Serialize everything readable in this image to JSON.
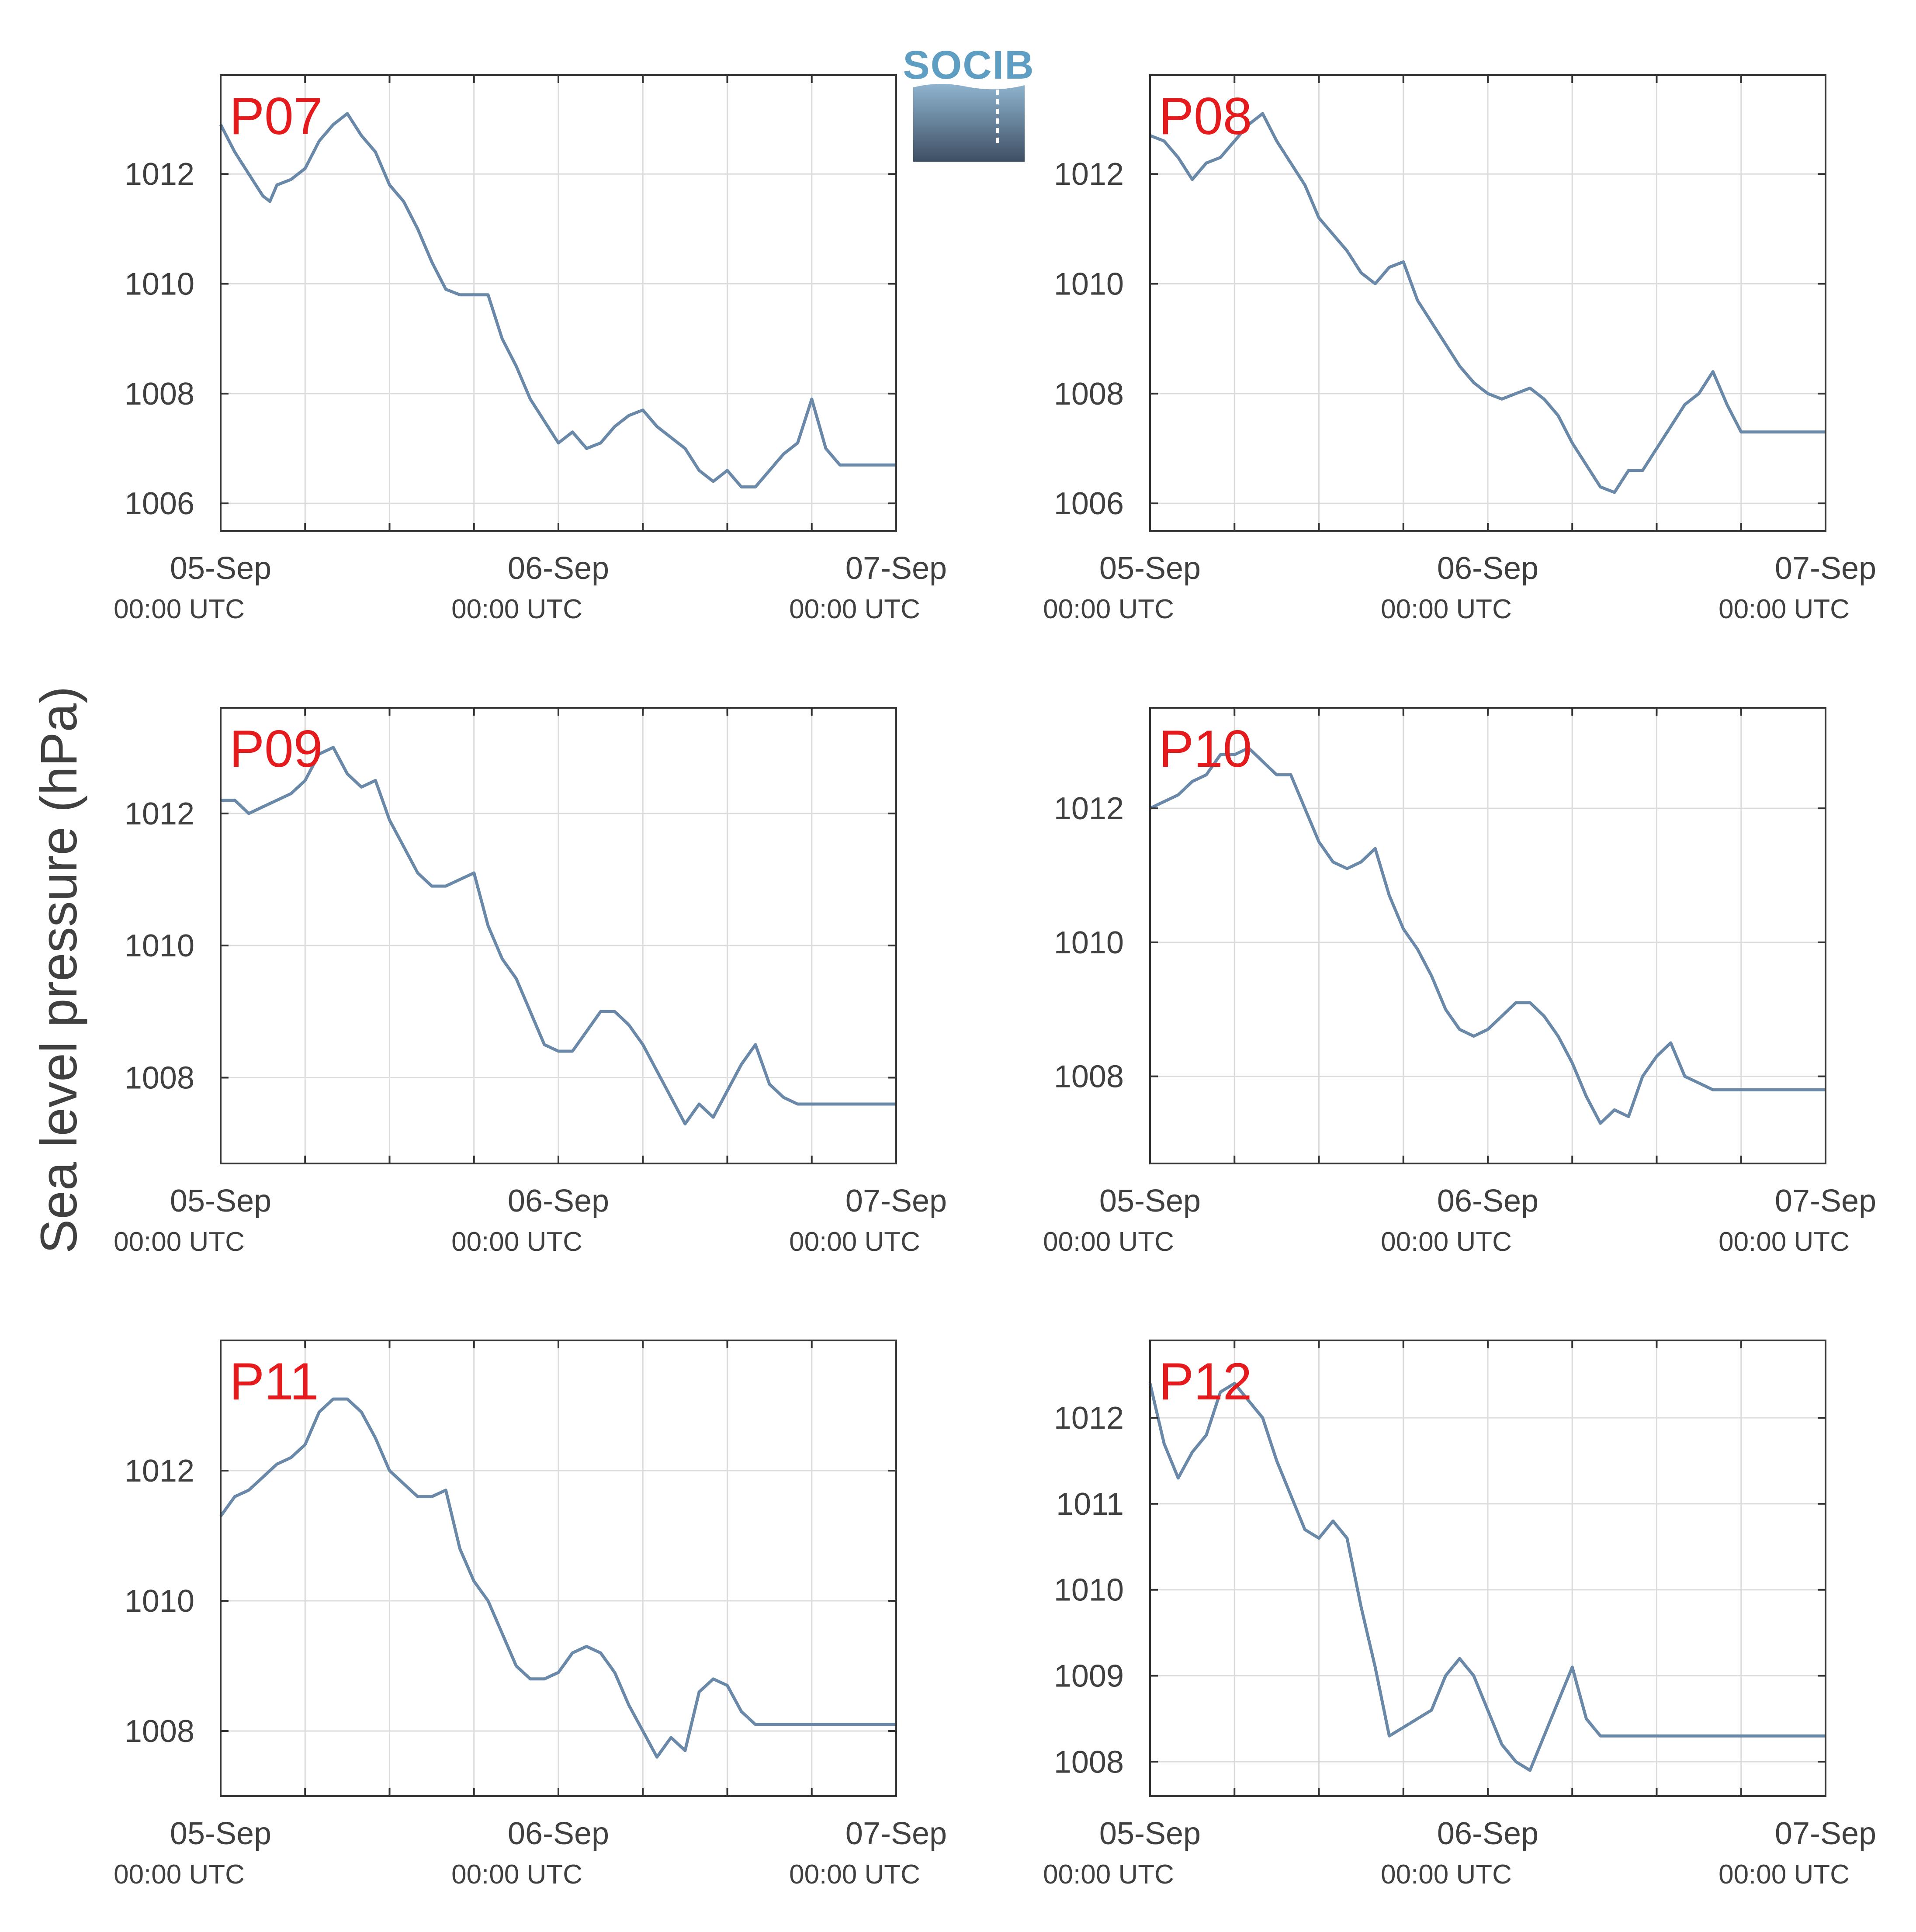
{
  "figure": {
    "ylabel": "Sea level pressure (hPa)",
    "logo": {
      "text": "SOCIB",
      "color": "#5f9ec3"
    },
    "line_color": "#6a89a8",
    "label_color": "#e41a1c"
  },
  "chart_data": [
    {
      "type": "line",
      "label": "P07",
      "ylim": [
        1005.5,
        1013.8
      ],
      "yticks": [
        1006,
        1008,
        1010,
        1012
      ],
      "xlim": [
        0,
        48
      ],
      "xticks_major": [
        0,
        24,
        48
      ],
      "xticks_minor": [
        6,
        12,
        18,
        30,
        36,
        42
      ],
      "xticklabels": [
        "05-Sep",
        "06-Sep",
        "07-Sep"
      ],
      "xticksublabels": [
        "00:00 UTC",
        "00:00 UTC",
        "00:00 UTC"
      ],
      "grid": true,
      "x": [
        0,
        1,
        2,
        3,
        3.5,
        4,
        5,
        6,
        7,
        8,
        9,
        10,
        11,
        12,
        13,
        14,
        15,
        16,
        17,
        18,
        19,
        20,
        21,
        22,
        23,
        24,
        25,
        26,
        27,
        28,
        29,
        30,
        31,
        32,
        33,
        34,
        35,
        36,
        37,
        38,
        39,
        40,
        41,
        42,
        43,
        44,
        45,
        46,
        47,
        48
      ],
      "y": [
        1012.9,
        1012.4,
        1012.0,
        1011.6,
        1011.5,
        1011.8,
        1011.9,
        1012.1,
        1012.6,
        1012.9,
        1013.1,
        1012.7,
        1012.4,
        1011.8,
        1011.5,
        1011.0,
        1010.4,
        1009.9,
        1009.8,
        1009.8,
        1009.8,
        1009.0,
        1008.5,
        1007.9,
        1007.5,
        1007.1,
        1007.3,
        1007.0,
        1007.1,
        1007.4,
        1007.6,
        1007.7,
        1007.4,
        1007.2,
        1007.0,
        1006.6,
        1006.4,
        1006.6,
        1006.3,
        1006.3,
        1006.6,
        1006.9,
        1007.1,
        1007.9,
        1007.0,
        1006.7,
        1006.7,
        1006.7,
        1006.7,
        1006.7
      ]
    },
    {
      "type": "line",
      "label": "P08",
      "ylim": [
        1005.5,
        1013.8
      ],
      "yticks": [
        1006,
        1008,
        1010,
        1012
      ],
      "xlim": [
        0,
        48
      ],
      "xticks_major": [
        0,
        24,
        48
      ],
      "xticks_minor": [
        6,
        12,
        18,
        30,
        36,
        42
      ],
      "xticklabels": [
        "05-Sep",
        "06-Sep",
        "07-Sep"
      ],
      "xticksublabels": [
        "00:00 UTC",
        "00:00 UTC",
        "00:00 UTC"
      ],
      "grid": true,
      "x": [
        0,
        1,
        2,
        3,
        4,
        5,
        6,
        7,
        8,
        9,
        10,
        11,
        12,
        13,
        14,
        15,
        16,
        17,
        18,
        19,
        20,
        21,
        22,
        23,
        24,
        25,
        26,
        27,
        28,
        29,
        30,
        31,
        32,
        33,
        34,
        35,
        36,
        37,
        38,
        39,
        40,
        41,
        42,
        43,
        44,
        45,
        46,
        47,
        48
      ],
      "y": [
        1012.7,
        1012.6,
        1012.3,
        1011.9,
        1012.2,
        1012.3,
        1012.6,
        1012.9,
        1013.1,
        1012.6,
        1012.2,
        1011.8,
        1011.2,
        1010.9,
        1010.6,
        1010.2,
        1010.0,
        1010.3,
        1010.4,
        1009.7,
        1009.3,
        1008.9,
        1008.5,
        1008.2,
        1008.0,
        1007.9,
        1008.0,
        1008.1,
        1007.9,
        1007.6,
        1007.1,
        1006.7,
        1006.3,
        1006.2,
        1006.6,
        1006.6,
        1007.0,
        1007.4,
        1007.8,
        1008.0,
        1008.4,
        1007.8,
        1007.3,
        1007.3,
        1007.3,
        1007.3,
        1007.3,
        1007.3,
        1007.3
      ]
    },
    {
      "type": "line",
      "label": "P09",
      "ylim": [
        1006.7,
        1013.6
      ],
      "yticks": [
        1008,
        1010,
        1012
      ],
      "xlim": [
        0,
        48
      ],
      "xticks_major": [
        0,
        24,
        48
      ],
      "xticks_minor": [
        6,
        12,
        18,
        30,
        36,
        42
      ],
      "xticklabels": [
        "05-Sep",
        "06-Sep",
        "07-Sep"
      ],
      "xticksublabels": [
        "00:00 UTC",
        "00:00 UTC",
        "00:00 UTC"
      ],
      "grid": true,
      "x": [
        0,
        1,
        2,
        3,
        4,
        5,
        6,
        7,
        8,
        9,
        10,
        11,
        12,
        13,
        14,
        15,
        16,
        17,
        18,
        19,
        20,
        21,
        22,
        23,
        24,
        25,
        26,
        27,
        28,
        29,
        30,
        31,
        32,
        33,
        34,
        35,
        36,
        37,
        38,
        39,
        40,
        41,
        42,
        43,
        44,
        45,
        46,
        47,
        48
      ],
      "y": [
        1012.2,
        1012.2,
        1012.0,
        1012.1,
        1012.2,
        1012.3,
        1012.5,
        1012.9,
        1013.0,
        1012.6,
        1012.4,
        1012.5,
        1011.9,
        1011.5,
        1011.1,
        1010.9,
        1010.9,
        1011.0,
        1011.1,
        1010.3,
        1009.8,
        1009.5,
        1009.0,
        1008.5,
        1008.4,
        1008.4,
        1008.7,
        1009.0,
        1009.0,
        1008.8,
        1008.5,
        1008.1,
        1007.7,
        1007.3,
        1007.6,
        1007.4,
        1007.8,
        1008.2,
        1008.5,
        1007.9,
        1007.7,
        1007.6,
        1007.6,
        1007.6,
        1007.6,
        1007.6,
        1007.6,
        1007.6,
        1007.6
      ]
    },
    {
      "type": "line",
      "label": "P10",
      "ylim": [
        1006.7,
        1013.5
      ],
      "yticks": [
        1008,
        1010,
        1012
      ],
      "xlim": [
        0,
        48
      ],
      "xticks_major": [
        0,
        24,
        48
      ],
      "xticks_minor": [
        6,
        12,
        18,
        30,
        36,
        42
      ],
      "xticklabels": [
        "05-Sep",
        "06-Sep",
        "07-Sep"
      ],
      "xticksublabels": [
        "00:00 UTC",
        "00:00 UTC",
        "00:00 UTC"
      ],
      "grid": true,
      "x": [
        0,
        1,
        2,
        3,
        4,
        5,
        6,
        7,
        8,
        9,
        10,
        11,
        12,
        13,
        14,
        15,
        16,
        17,
        18,
        19,
        20,
        21,
        22,
        23,
        24,
        25,
        26,
        27,
        28,
        29,
        30,
        31,
        32,
        33,
        34,
        35,
        36,
        37,
        38,
        39,
        40,
        41,
        42,
        43,
        44,
        45,
        46,
        47,
        48
      ],
      "y": [
        1012.0,
        1012.1,
        1012.2,
        1012.4,
        1012.5,
        1012.8,
        1012.8,
        1012.9,
        1012.7,
        1012.5,
        1012.5,
        1012.0,
        1011.5,
        1011.2,
        1011.1,
        1011.2,
        1011.4,
        1010.7,
        1010.2,
        1009.9,
        1009.5,
        1009.0,
        1008.7,
        1008.6,
        1008.7,
        1008.9,
        1009.1,
        1009.1,
        1008.9,
        1008.6,
        1008.2,
        1007.7,
        1007.3,
        1007.5,
        1007.4,
        1008.0,
        1008.3,
        1008.5,
        1008.0,
        1007.9,
        1007.8,
        1007.8,
        1007.8,
        1007.8,
        1007.8,
        1007.8,
        1007.8,
        1007.8,
        1007.8
      ]
    },
    {
      "type": "line",
      "label": "P11",
      "ylim": [
        1007.0,
        1014.0
      ],
      "yticks": [
        1008,
        1010,
        1012
      ],
      "xlim": [
        0,
        48
      ],
      "xticks_major": [
        0,
        24,
        48
      ],
      "xticks_minor": [
        6,
        12,
        18,
        30,
        36,
        42
      ],
      "xticklabels": [
        "05-Sep",
        "06-Sep",
        "07-Sep"
      ],
      "xticksublabels": [
        "00:00 UTC",
        "00:00 UTC",
        "00:00 UTC"
      ],
      "grid": true,
      "x": [
        0,
        1,
        2,
        3,
        4,
        5,
        6,
        7,
        8,
        9,
        10,
        11,
        12,
        13,
        14,
        15,
        16,
        17,
        18,
        19,
        20,
        21,
        22,
        23,
        24,
        25,
        26,
        27,
        28,
        29,
        30,
        31,
        32,
        33,
        34,
        35,
        36,
        37,
        38,
        39,
        40,
        41,
        42,
        43,
        44,
        45,
        46,
        47,
        48
      ],
      "y": [
        1011.3,
        1011.6,
        1011.7,
        1011.9,
        1012.1,
        1012.2,
        1012.4,
        1012.9,
        1013.1,
        1013.1,
        1012.9,
        1012.5,
        1012.0,
        1011.8,
        1011.6,
        1011.6,
        1011.7,
        1010.8,
        1010.3,
        1010.0,
        1009.5,
        1009.0,
        1008.8,
        1008.8,
        1008.9,
        1009.2,
        1009.3,
        1009.2,
        1008.9,
        1008.4,
        1008.0,
        1007.6,
        1007.9,
        1007.7,
        1008.6,
        1008.8,
        1008.7,
        1008.3,
        1008.1,
        1008.1,
        1008.1,
        1008.1,
        1008.1,
        1008.1,
        1008.1,
        1008.1,
        1008.1,
        1008.1,
        1008.1
      ]
    },
    {
      "type": "line",
      "label": "P12",
      "ylim": [
        1007.6,
        1012.9
      ],
      "yticks": [
        1008,
        1009,
        1010,
        1011,
        1012
      ],
      "xlim": [
        0,
        48
      ],
      "xticks_major": [
        0,
        24,
        48
      ],
      "xticks_minor": [
        6,
        12,
        18,
        30,
        36,
        42
      ],
      "xticklabels": [
        "05-Sep",
        "06-Sep",
        "07-Sep"
      ],
      "xticksublabels": [
        "00:00 UTC",
        "00:00 UTC",
        "00:00 UTC"
      ],
      "grid": true,
      "x": [
        0,
        1,
        2,
        3,
        4,
        5,
        6,
        7,
        8,
        9,
        10,
        11,
        12,
        13,
        14,
        15,
        16,
        17,
        18,
        19,
        20,
        21,
        22,
        23,
        24,
        25,
        26,
        27,
        28,
        29,
        30,
        31,
        32,
        33,
        34,
        35,
        36,
        37,
        38,
        39,
        40,
        41,
        42,
        43,
        44,
        45,
        46,
        47,
        48
      ],
      "y": [
        1012.4,
        1011.7,
        1011.3,
        1011.6,
        1011.8,
        1012.3,
        1012.4,
        1012.2,
        1012.0,
        1011.5,
        1011.1,
        1010.7,
        1010.6,
        1010.8,
        1010.6,
        1009.8,
        1009.1,
        1008.3,
        1008.4,
        1008.5,
        1008.6,
        1009.0,
        1009.2,
        1009.0,
        1008.6,
        1008.2,
        1008.0,
        1007.9,
        1008.3,
        1008.7,
        1009.1,
        1008.5,
        1008.3,
        1008.3,
        1008.3,
        1008.3,
        1008.3,
        1008.3,
        1008.3,
        1008.3,
        1008.3,
        1008.3,
        1008.3,
        1008.3,
        1008.3,
        1008.3,
        1008.3,
        1008.3,
        1008.3
      ]
    }
  ]
}
